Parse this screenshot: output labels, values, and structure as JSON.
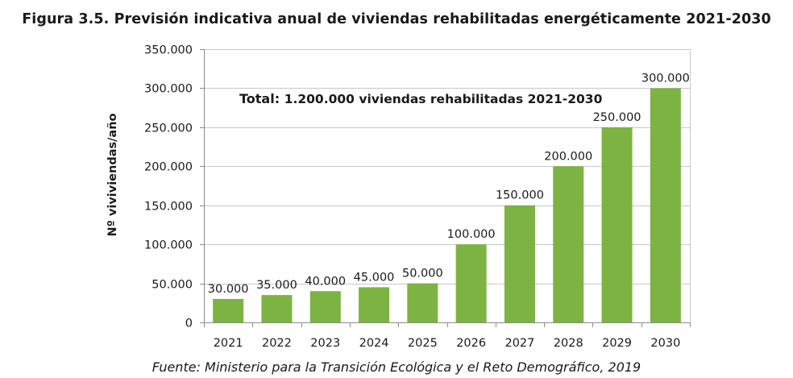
{
  "figure": {
    "title": "Figura 3.5. Previsión indicativa anual de viviendas rehabilitadas energéticamente 2021-2030",
    "source": "Fuente: Ministerio para la Transición Ecológica y el Reto Demográfico, 2019"
  },
  "chart_data": {
    "type": "bar",
    "categories": [
      "2021",
      "2022",
      "2023",
      "2024",
      "2025",
      "2026",
      "2027",
      "2028",
      "2029",
      "2030"
    ],
    "values": [
      30000,
      35000,
      40000,
      45000,
      50000,
      100000,
      150000,
      200000,
      250000,
      300000
    ],
    "data_labels": [
      "30.000",
      "35.000",
      "40.000",
      "45.000",
      "50.000",
      "100.000",
      "150.000",
      "200.000",
      "250.000",
      "300.000"
    ],
    "title": "",
    "xlabel": "",
    "ylabel": "Nº viviviendas/año",
    "ylim": [
      0,
      350000
    ],
    "yticks": [
      0,
      50000,
      100000,
      150000,
      200000,
      250000,
      300000,
      350000
    ],
    "ytick_labels": [
      "0",
      "50.000",
      "100.000",
      "150.000",
      "200.000",
      "250.000",
      "300.000",
      "350.000"
    ],
    "grid": true,
    "bar_color": "#7cb342",
    "annotation": {
      "prefix": "Total:",
      "rest": "1.200.000 viviendas rehabilitadas 2021-2030"
    }
  }
}
